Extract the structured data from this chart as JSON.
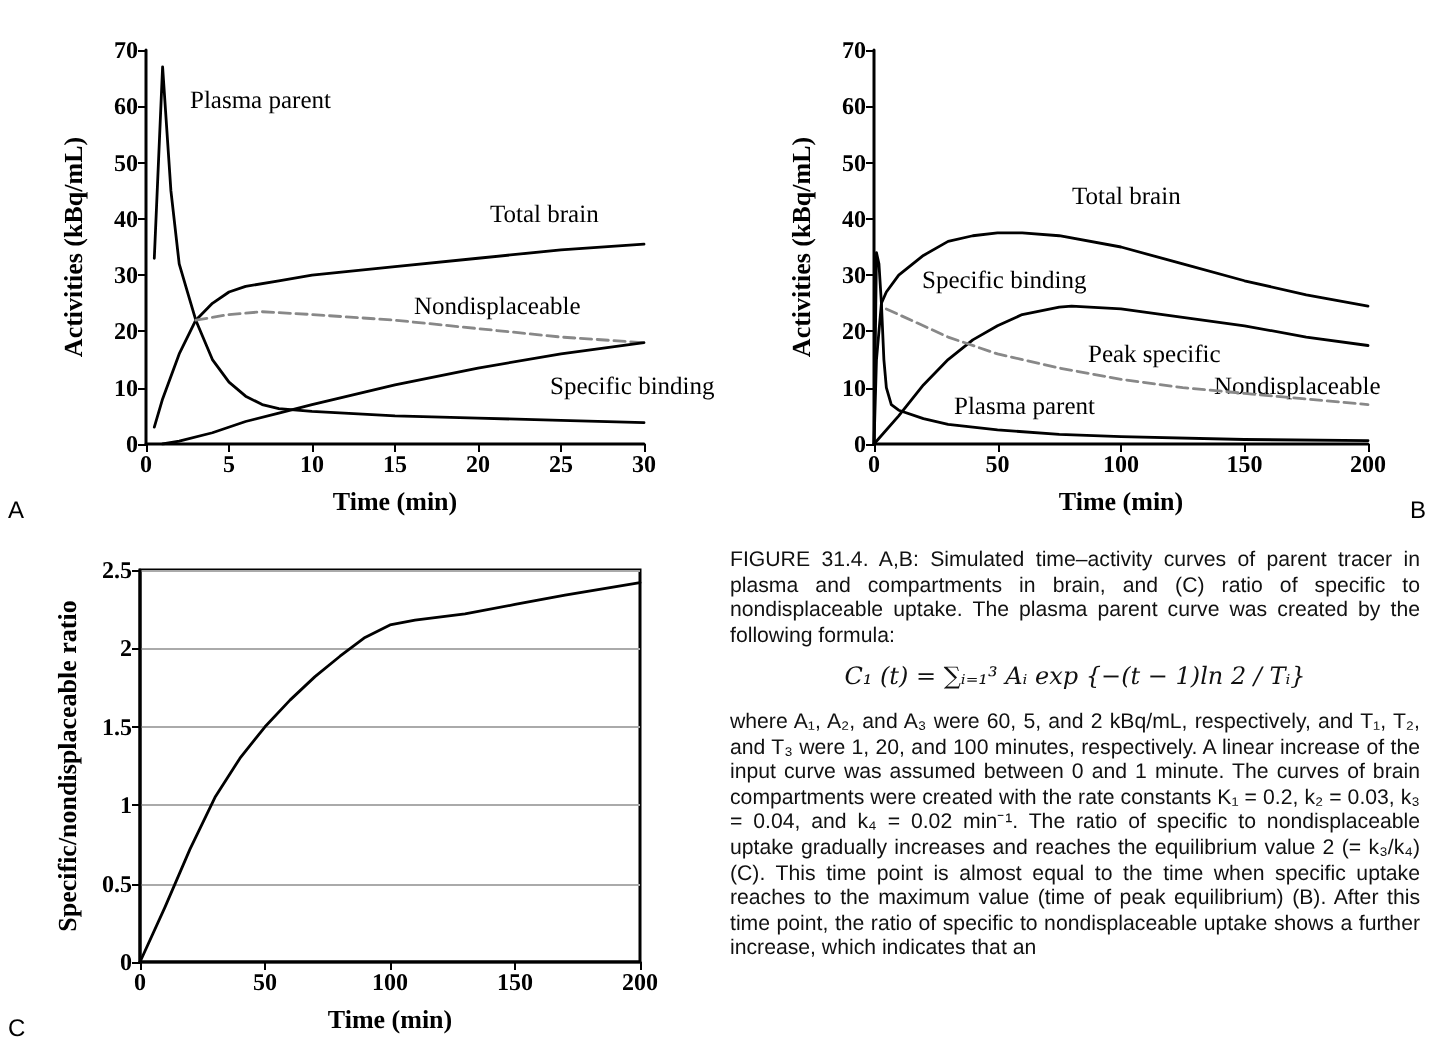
{
  "chart_data": [
    {
      "type": "line",
      "xlabel": "Time (min)",
      "ylabel": "Activities (kBq/mL)",
      "xlim": [
        0,
        30
      ],
      "ylim": [
        0,
        70
      ],
      "xticks": [
        0,
        5,
        10,
        15,
        20,
        25,
        30
      ],
      "yticks": [
        0,
        10,
        20,
        30,
        40,
        50,
        60,
        70
      ],
      "marker": "none",
      "series": [
        {
          "color": "#000000",
          "x": [
            0.5,
            1,
            1.5,
            2,
            2.5,
            3,
            4,
            5,
            6,
            7,
            8,
            10,
            15,
            20,
            25,
            30
          ],
          "values": [
            33,
            67,
            45,
            32,
            27,
            22,
            15,
            11,
            8.5,
            7,
            6.3,
            5.8,
            5,
            4.6,
            4.2,
            3.8
          ]
        },
        {
          "color": "#000000",
          "x": [
            0.5,
            1,
            2,
            3,
            4,
            5,
            6,
            8,
            10,
            15,
            20,
            25,
            30
          ],
          "values": [
            3,
            8,
            16,
            22,
            25,
            27,
            28,
            29,
            30,
            31.5,
            33,
            34.5,
            35.5
          ]
        },
        {
          "color": "#888888",
          "line_style": "dashed",
          "x": [
            3,
            5,
            7,
            10,
            15,
            20,
            25,
            30
          ],
          "values": [
            22,
            23,
            23.5,
            23,
            22,
            20.5,
            19,
            18
          ]
        },
        {
          "color": "#000000",
          "x": [
            1,
            2,
            4,
            6,
            8,
            10,
            15,
            20,
            25,
            30
          ],
          "values": [
            0,
            0.5,
            2,
            4,
            5.5,
            7,
            10.5,
            13.5,
            16,
            18
          ]
        }
      ],
      "annotations": [
        "Plasma parent",
        "Total brain",
        "Nondisplaceable",
        "Specific binding",
        "A"
      ]
    },
    {
      "type": "line",
      "xlabel": "Time (min)",
      "ylabel": "Activities (kBq/mL)",
      "xlim": [
        0,
        200
      ],
      "ylim": [
        0,
        70
      ],
      "xticks": [
        0,
        50,
        100,
        150,
        200
      ],
      "yticks": [
        0,
        10,
        20,
        30,
        40,
        50,
        60,
        70
      ],
      "marker": "none",
      "series": [
        {
          "color": "#000000",
          "x": [
            0,
            1,
            3,
            5,
            10,
            20,
            30,
            40,
            50,
            60,
            75,
            100,
            125,
            150,
            175,
            200
          ],
          "values": [
            0,
            15,
            25,
            27,
            30,
            33.5,
            36,
            37,
            37.5,
            37.5,
            37,
            35,
            32,
            29,
            26.5,
            24.5
          ]
        },
        {
          "color": "#000000",
          "x": [
            0,
            1,
            2,
            3,
            4,
            5,
            7,
            10,
            20,
            30,
            50,
            75,
            100,
            150,
            200
          ],
          "values": [
            0,
            34,
            32,
            25,
            15,
            10,
            7,
            6,
            4.5,
            3.5,
            2.5,
            1.7,
            1.3,
            0.8,
            0.6
          ]
        },
        {
          "color": "#000000",
          "x": [
            0,
            10,
            20,
            30,
            40,
            50,
            60,
            75,
            80,
            100,
            125,
            150,
            175,
            200
          ],
          "values": [
            0,
            5,
            10.5,
            15,
            18.5,
            21,
            23,
            24.3,
            24.5,
            24,
            22.5,
            21,
            19,
            17.5
          ]
        },
        {
          "color": "#888888",
          "line_style": "dashed",
          "x": [
            5,
            10,
            20,
            30,
            50,
            75,
            100,
            125,
            150,
            175,
            200
          ],
          "values": [
            24,
            23,
            21,
            19,
            16,
            13.5,
            11.5,
            10,
            9,
            8,
            7
          ]
        }
      ],
      "annotations": [
        "Total brain",
        "Specific binding",
        "Peak specific",
        "Nondisplaceable",
        "Plasma parent",
        "B"
      ]
    },
    {
      "type": "line",
      "xlabel": "Time (min)",
      "ylabel": "Specific/nondisplaceable ratio",
      "xlim": [
        0,
        200
      ],
      "ylim": [
        0,
        2.5
      ],
      "xticks": [
        0,
        50,
        100,
        150,
        200
      ],
      "yticks": [
        0,
        0.5,
        1,
        1.5,
        2,
        2.5
      ],
      "marker": "none",
      "grid": "y",
      "series": [
        {
          "color": "#000000",
          "x": [
            0,
            10,
            20,
            30,
            40,
            50,
            60,
            70,
            80,
            90,
            100,
            110,
            130,
            150,
            170,
            200
          ],
          "values": [
            0,
            0.35,
            0.72,
            1.05,
            1.3,
            1.5,
            1.67,
            1.82,
            1.95,
            2.07,
            2.15,
            2.18,
            2.22,
            2.28,
            2.34,
            2.42
          ]
        }
      ],
      "annotations": [
        "C"
      ]
    },
    {
      "type": "other",
      "annotations": [
        "FIGURE 31.4. A,B: Simulated time–activity curves of parent tracer in plasma and compartments in brain, and (C) ratio of specific to nondisplaceable uptake. The plasma parent curve was created by the following formula:",
        "C₁ (t) = ∑ᵢ₌₁³ Aᵢ exp {−(t − 1)ln 2 / Tᵢ}",
        "where A₁, A₂, and A₃ were 60, 5, and 2 kBq/mL, respectively, and T₁, T₂, and T₃ were 1, 20, and 100 minutes, respectively. A linear increase of the input curve was assumed between 0 and 1 minute. The curves of brain compartments were created with the rate constants K₁ = 0.2, k₂ = 0.03, k₃ = 0.04, and k₄ = 0.02 min⁻¹. The ratio of specific to nondisplaceable uptake gradually increases and reaches the equilibrium value 2 (= k₃/k₄) (C). This time point is almost equal to the time when specific uptake reaches to the maximum value (time of peak equilibrium) (B). After this time point, the ratio of specific to nondisplaceable uptake shows a further increase, which indicates that an"
      ]
    }
  ]
}
